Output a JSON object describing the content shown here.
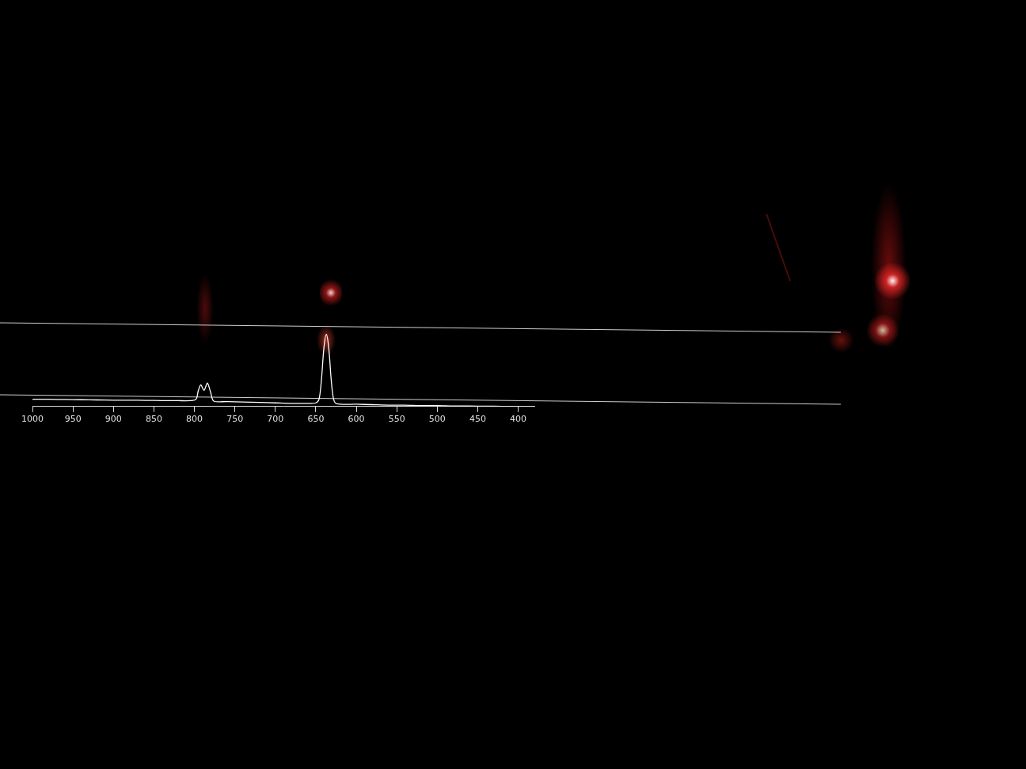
{
  "chart_data": {
    "type": "line",
    "x": [
      1000,
      980,
      960,
      940,
      920,
      900,
      880,
      860,
      840,
      820,
      805,
      798,
      795,
      792,
      788,
      784,
      780,
      776,
      760,
      740,
      720,
      700,
      680,
      660,
      650,
      646,
      643,
      640,
      637,
      634,
      631,
      628,
      624,
      600,
      580,
      560,
      540,
      520,
      500,
      480,
      460,
      440,
      420,
      400,
      380
    ],
    "values": [
      8,
      8,
      7.8,
      7.5,
      7.3,
      7,
      7,
      6.8,
      6.6,
      6.5,
      6.5,
      8,
      18,
      24,
      18,
      26,
      16,
      6,
      5.5,
      5,
      4.5,
      4,
      3.5,
      3.5,
      4,
      8,
      30,
      65,
      80,
      65,
      30,
      8,
      3,
      2.5,
      2,
      1.5,
      1.5,
      1,
      1,
      0.5,
      0.5,
      0.3,
      0.2,
      0,
      0
    ],
    "color": "#ffffff",
    "xlim": [
      1000,
      380
    ],
    "xticks": [
      1000,
      950,
      900,
      850,
      800,
      750,
      700,
      650,
      600,
      550,
      500,
      450,
      400
    ],
    "ylim": [
      0,
      100
    ],
    "tick_labels": "x",
    "grid": false
  }
}
